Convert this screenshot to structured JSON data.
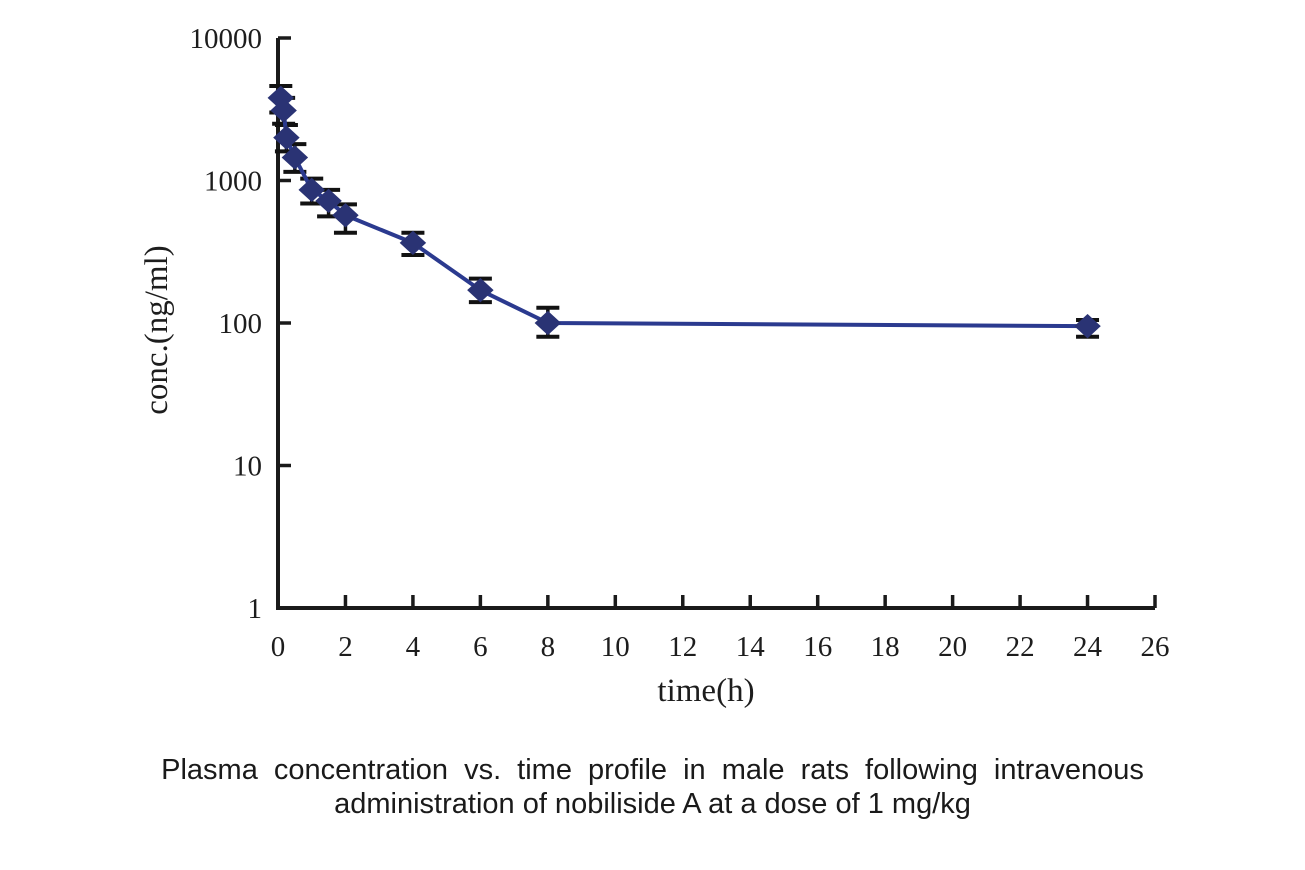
{
  "page": {
    "background": "#ffffff"
  },
  "caption": {
    "line1": "Plasma concentration vs. time profile in male rats following intravenous",
    "line2": "administration of nobiliside A at a dose of 1 mg/kg"
  },
  "chart_data": {
    "type": "line",
    "title": "",
    "xlabel": "time(h)",
    "ylabel": "conc.(ng/ml)",
    "x_scale": "linear",
    "y_scale": "log",
    "xlim": [
      0,
      26
    ],
    "ylim": [
      1,
      10000
    ],
    "x_ticks": [
      0,
      2,
      4,
      6,
      8,
      10,
      12,
      14,
      16,
      18,
      20,
      22,
      24,
      26
    ],
    "y_ticks": [
      1,
      10,
      100,
      1000,
      10000
    ],
    "grid": false,
    "legend": "none",
    "marker": "diamond",
    "error_bars": "vertical-sd",
    "colors": {
      "line": "#2b3a8f",
      "marker": "#2a3374",
      "error_bar": "#121212",
      "axis": "#1a1a1a",
      "text": "#1d1d1d"
    },
    "series": [
      {
        "x": [
          0.083,
          0.167,
          0.25,
          0.5,
          1,
          1.5,
          2,
          4,
          6,
          8,
          24
        ],
        "y": [
          3800,
          3100,
          2000,
          1450,
          860,
          720,
          570,
          365,
          170,
          100,
          95
        ],
        "y_err_high": [
          4600,
          3800,
          2450,
          1800,
          1030,
          860,
          680,
          430,
          205,
          128,
          105
        ],
        "y_err_low": [
          3000,
          2500,
          1600,
          1150,
          690,
          560,
          430,
          300,
          140,
          80,
          80
        ]
      }
    ]
  }
}
